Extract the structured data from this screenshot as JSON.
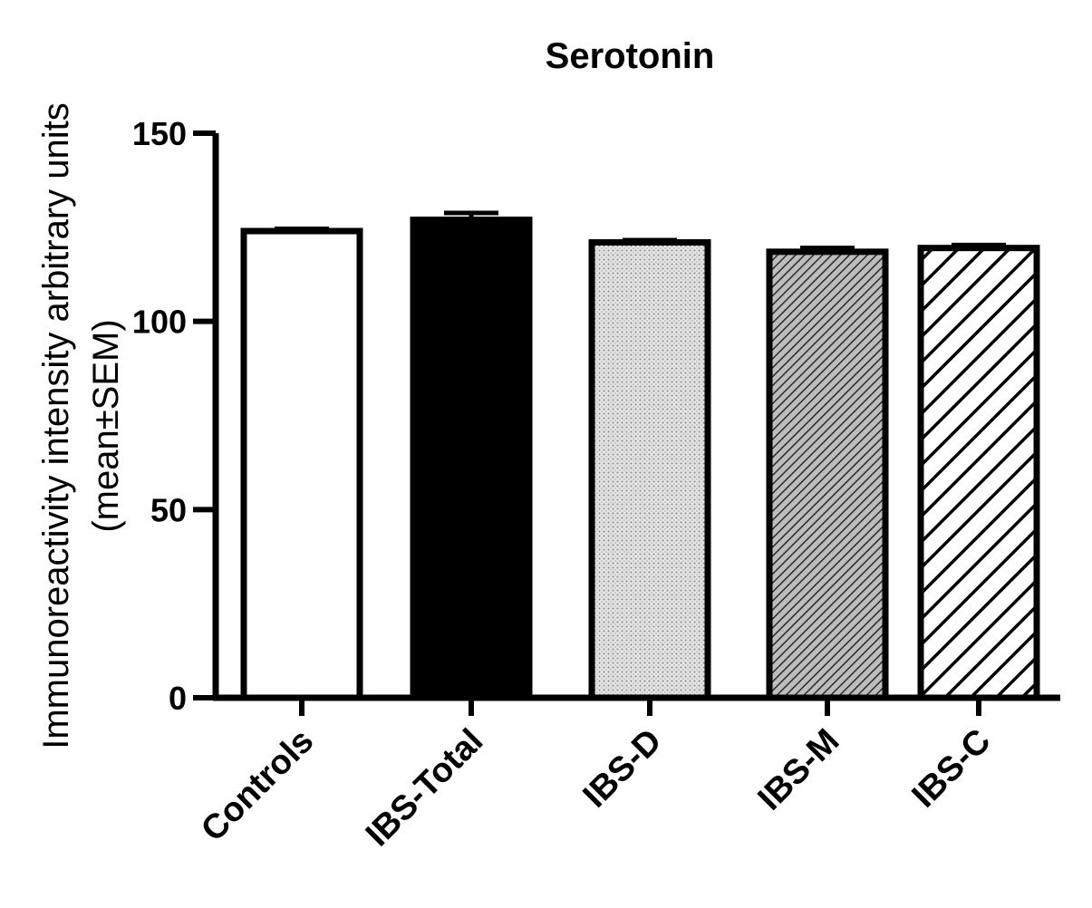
{
  "chart_data": {
    "type": "bar",
    "title": "Serotonin",
    "ylabel_line1": "Immunoreactivity intensity arbitrary units",
    "ylabel_line2": "(mean±SEM)",
    "xlabel": "",
    "categories": [
      "Controls",
      "IBS-Total",
      "IBS-D",
      "IBS-M",
      "IBS-C"
    ],
    "values": [
      124,
      127,
      121,
      118.5,
      119.5
    ],
    "errors": [
      0.6,
      1.8,
      0.6,
      1.0,
      0.8
    ],
    "fills": [
      "white",
      "black",
      "dots",
      "dense-hatch",
      "hatch"
    ],
    "ylim": [
      0,
      150
    ],
    "yticks": [
      0,
      50,
      100,
      150
    ],
    "grid": false,
    "legend": "none"
  }
}
